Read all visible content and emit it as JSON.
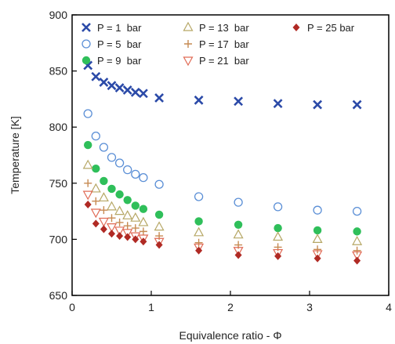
{
  "chart_data": {
    "type": "scatter",
    "xlabel": "Equivalence ratio - Φ",
    "ylabel": "Temperature [K]",
    "xlim": [
      0,
      4
    ],
    "ylim": [
      650,
      900
    ],
    "x_ticks": [
      "0",
      "1",
      "2",
      "3",
      "4"
    ],
    "y_ticks": [
      "650",
      "700",
      "750",
      "800",
      "850",
      "900"
    ],
    "grid": false,
    "legend_position": "top-right",
    "series": [
      {
        "name": "P = 1  bar",
        "marker": "x",
        "color": "#2b4aa8",
        "points": [
          [
            0.2,
            855
          ],
          [
            0.3,
            845
          ],
          [
            0.4,
            840
          ],
          [
            0.5,
            837
          ],
          [
            0.6,
            835
          ],
          [
            0.7,
            833
          ],
          [
            0.8,
            831
          ],
          [
            0.9,
            830
          ],
          [
            1.1,
            826
          ],
          [
            1.6,
            824
          ],
          [
            2.1,
            823
          ],
          [
            2.6,
            821
          ],
          [
            3.1,
            820
          ],
          [
            3.6,
            820
          ]
        ]
      },
      {
        "name": "P = 5  bar",
        "marker": "circle-open",
        "color": "#5b8fd6",
        "points": [
          [
            0.2,
            812
          ],
          [
            0.3,
            792
          ],
          [
            0.4,
            782
          ],
          [
            0.5,
            773
          ],
          [
            0.6,
            768
          ],
          [
            0.7,
            762
          ],
          [
            0.8,
            758
          ],
          [
            0.9,
            755
          ],
          [
            1.1,
            749
          ],
          [
            1.6,
            738
          ],
          [
            2.1,
            733
          ],
          [
            2.6,
            729
          ],
          [
            3.1,
            726
          ],
          [
            3.6,
            725
          ]
        ]
      },
      {
        "name": "P = 9  bar",
        "marker": "circle-filled",
        "color": "#2fbf5a",
        "points": [
          [
            0.2,
            784
          ],
          [
            0.3,
            763
          ],
          [
            0.4,
            752
          ],
          [
            0.5,
            745
          ],
          [
            0.6,
            740
          ],
          [
            0.7,
            735
          ],
          [
            0.8,
            730
          ],
          [
            0.9,
            727
          ],
          [
            1.1,
            722
          ],
          [
            1.6,
            716
          ],
          [
            2.1,
            713
          ],
          [
            2.6,
            710
          ],
          [
            3.1,
            708
          ],
          [
            3.6,
            707
          ]
        ]
      },
      {
        "name": "P = 13  bar",
        "marker": "triangle-up-open",
        "color": "#b6a765",
        "points": [
          [
            0.2,
            766
          ],
          [
            0.3,
            745
          ],
          [
            0.4,
            737
          ],
          [
            0.5,
            729
          ],
          [
            0.6,
            725
          ],
          [
            0.7,
            721
          ],
          [
            0.8,
            719
          ],
          [
            0.9,
            715
          ],
          [
            1.1,
            711
          ],
          [
            1.6,
            706
          ],
          [
            2.1,
            704
          ],
          [
            2.6,
            702
          ],
          [
            3.1,
            700
          ],
          [
            3.6,
            698
          ]
        ]
      },
      {
        "name": "P = 17  bar",
        "marker": "plus",
        "color": "#c68a52",
        "points": [
          [
            0.2,
            750
          ],
          [
            0.3,
            734
          ],
          [
            0.4,
            726
          ],
          [
            0.5,
            719
          ],
          [
            0.6,
            715
          ],
          [
            0.7,
            712
          ],
          [
            0.8,
            710
          ],
          [
            0.9,
            707
          ],
          [
            1.1,
            703
          ],
          [
            1.6,
            697
          ],
          [
            2.1,
            695
          ],
          [
            2.6,
            693
          ],
          [
            3.1,
            691
          ],
          [
            3.6,
            690
          ]
        ]
      },
      {
        "name": "P = 21  bar",
        "marker": "triangle-down-open",
        "color": "#e06a55",
        "points": [
          [
            0.2,
            740
          ],
          [
            0.3,
            724
          ],
          [
            0.4,
            716
          ],
          [
            0.5,
            711
          ],
          [
            0.6,
            708
          ],
          [
            0.7,
            706
          ],
          [
            0.8,
            703
          ],
          [
            0.9,
            701
          ],
          [
            1.1,
            698
          ],
          [
            1.6,
            693
          ],
          [
            2.1,
            690
          ],
          [
            2.6,
            688
          ],
          [
            3.1,
            687
          ],
          [
            3.6,
            686
          ]
        ]
      },
      {
        "name": "P = 25 bar",
        "marker": "diamond-filled",
        "color": "#b02a24",
        "points": [
          [
            0.2,
            731
          ],
          [
            0.3,
            714
          ],
          [
            0.4,
            709
          ],
          [
            0.5,
            705
          ],
          [
            0.6,
            703
          ],
          [
            0.7,
            702
          ],
          [
            0.8,
            700
          ],
          [
            0.9,
            698
          ],
          [
            1.1,
            695
          ],
          [
            1.6,
            690
          ],
          [
            2.1,
            686
          ],
          [
            2.6,
            685
          ],
          [
            3.1,
            683
          ],
          [
            3.6,
            681
          ]
        ]
      }
    ]
  }
}
